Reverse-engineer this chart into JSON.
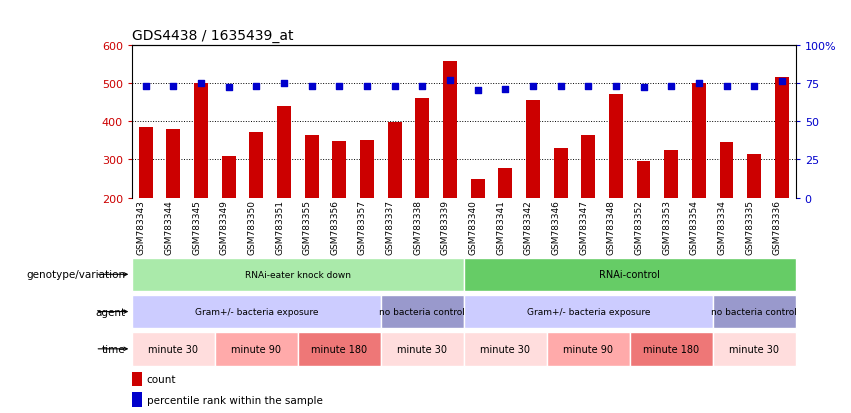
{
  "title": "GDS4438 / 1635439_at",
  "samples": [
    "GSM783343",
    "GSM783344",
    "GSM783345",
    "GSM783349",
    "GSM783350",
    "GSM783351",
    "GSM783355",
    "GSM783356",
    "GSM783357",
    "GSM783337",
    "GSM783338",
    "GSM783339",
    "GSM783340",
    "GSM783341",
    "GSM783342",
    "GSM783346",
    "GSM783347",
    "GSM783348",
    "GSM783352",
    "GSM783353",
    "GSM783354",
    "GSM783334",
    "GSM783335",
    "GSM783336"
  ],
  "counts": [
    385,
    380,
    500,
    308,
    372,
    440,
    363,
    347,
    350,
    398,
    460,
    557,
    248,
    277,
    455,
    330,
    363,
    472,
    295,
    325,
    500,
    345,
    313,
    515
  ],
  "percentiles": [
    73,
    73,
    75,
    72,
    73,
    75,
    73,
    73,
    73,
    73,
    73,
    77,
    70,
    71,
    73,
    73,
    73,
    73,
    72,
    73,
    75,
    73,
    73,
    76
  ],
  "ylim_left": [
    200,
    600
  ],
  "ylim_right": [
    0,
    100
  ],
  "yticks_left": [
    200,
    300,
    400,
    500,
    600
  ],
  "yticks_right": [
    0,
    25,
    50,
    75,
    100
  ],
  "bar_color": "#cc0000",
  "dot_color": "#0000cc",
  "genotype_groups": [
    {
      "label": "RNAi-eater knock down",
      "start": 0,
      "end": 12,
      "color": "#aaeaaa"
    },
    {
      "label": "RNAi-control",
      "start": 12,
      "end": 24,
      "color": "#66cc66"
    }
  ],
  "agent_groups": [
    {
      "label": "Gram+/- bacteria exposure",
      "start": 0,
      "end": 9,
      "color": "#ccccff"
    },
    {
      "label": "no bacteria control",
      "start": 9,
      "end": 12,
      "color": "#9999cc"
    },
    {
      "label": "Gram+/- bacteria exposure",
      "start": 12,
      "end": 21,
      "color": "#ccccff"
    },
    {
      "label": "no bacteria control",
      "start": 21,
      "end": 24,
      "color": "#9999cc"
    }
  ],
  "time_groups": [
    {
      "label": "minute 30",
      "start": 0,
      "end": 3,
      "color": "#ffdddd"
    },
    {
      "label": "minute 90",
      "start": 3,
      "end": 6,
      "color": "#ffaaaa"
    },
    {
      "label": "minute 180",
      "start": 6,
      "end": 9,
      "color": "#ee7777"
    },
    {
      "label": "minute 30",
      "start": 9,
      "end": 12,
      "color": "#ffdddd"
    },
    {
      "label": "minute 30",
      "start": 12,
      "end": 15,
      "color": "#ffdddd"
    },
    {
      "label": "minute 90",
      "start": 15,
      "end": 18,
      "color": "#ffaaaa"
    },
    {
      "label": "minute 180",
      "start": 18,
      "end": 21,
      "color": "#ee7777"
    },
    {
      "label": "minute 30",
      "start": 21,
      "end": 24,
      "color": "#ffdddd"
    }
  ],
  "row_labels": [
    "genotype/variation",
    "agent",
    "time"
  ],
  "legend_items": [
    {
      "label": "count",
      "color": "#cc0000"
    },
    {
      "label": "percentile rank within the sample",
      "color": "#0000cc"
    }
  ]
}
